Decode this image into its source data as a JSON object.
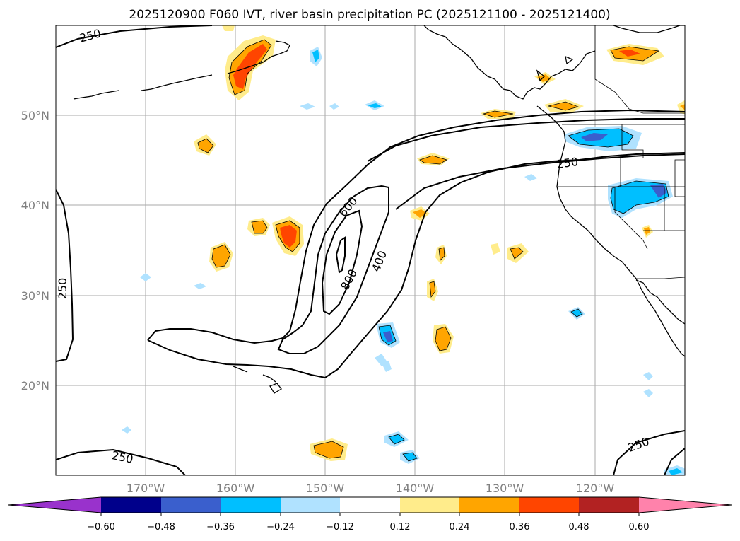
{
  "title": "2025120900 F060 IVT, river basin precipitation PC (2025121100 - 2025121400)",
  "map": {
    "lat_ticks": [
      "50°N",
      "40°N",
      "30°N",
      "20°N"
    ],
    "lon_ticks": [
      "170°W",
      "160°W",
      "150°W",
      "140°W",
      "130°W",
      "120°W"
    ],
    "ivt_contour_labels": [
      "250",
      "250",
      "250",
      "250",
      "250",
      "600",
      "400",
      "800"
    ]
  },
  "colorbar": {
    "tick_labels": [
      "-0.60",
      "-0.48",
      "-0.36",
      "-0.24",
      "-0.12",
      "0.12",
      "0.24",
      "0.36",
      "0.48",
      "0.60"
    ],
    "colors": [
      "#9932cc",
      "#00008b",
      "#3a5fcd",
      "#00bfff",
      "#b0e2ff",
      "#ffffff",
      "#ffec8b",
      "#ffa500",
      "#ff4500",
      "#b22222",
      "#ff82ab"
    ]
  }
}
